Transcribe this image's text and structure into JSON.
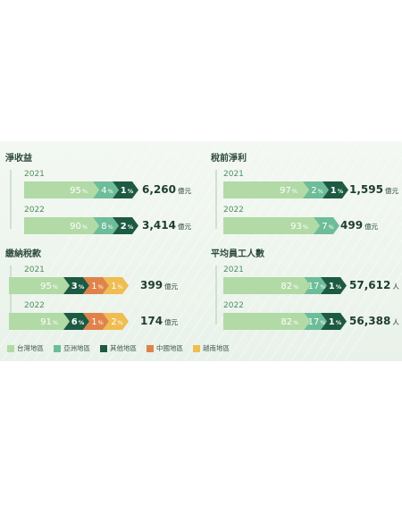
{
  "colors": {
    "taiwan": "#b2daa6",
    "asia": "#6dbd98",
    "other": "#1d5a43",
    "china": "#e0834a",
    "vietnam": "#efbd52"
  },
  "legend": [
    {
      "key": "taiwan",
      "label": "台灣地區"
    },
    {
      "key": "asia",
      "label": "亞洲地區"
    },
    {
      "key": "other",
      "label": "其他地區"
    },
    {
      "key": "china",
      "label": "中國地區"
    },
    {
      "key": "vietnam",
      "label": "越南地區"
    }
  ],
  "chart_data": [
    {
      "type": "bar",
      "title": "淨收益",
      "stacked": true,
      "categories": [
        "2021",
        "2022"
      ],
      "series": [
        {
          "name": "台灣地區",
          "key": "taiwan",
          "values": [
            95,
            90
          ],
          "labels": [
            "95",
            "90"
          ]
        },
        {
          "name": "亞洲地區",
          "key": "asia",
          "values": [
            4,
            8
          ],
          "labels": [
            "4",
            "8"
          ]
        },
        {
          "name": "其他地區",
          "key": "other",
          "values": [
            1,
            2
          ],
          "labels": [
            "1",
            "2"
          ]
        }
      ],
      "totals": [
        {
          "value": "6,260",
          "unit": "億元"
        },
        {
          "value": "3,414",
          "unit": "億元"
        }
      ]
    },
    {
      "type": "bar",
      "title": "稅前淨利",
      "stacked": true,
      "categories": [
        "2021",
        "2022"
      ],
      "series": [
        {
          "name": "台灣地區",
          "key": "taiwan",
          "values": [
            97,
            93
          ],
          "labels": [
            "97",
            "93"
          ]
        },
        {
          "name": "亞洲地區",
          "key": "asia",
          "values": [
            2,
            7
          ],
          "labels": [
            "2",
            "7"
          ]
        },
        {
          "name": "其他地區",
          "key": "other",
          "values": [
            1,
            0
          ],
          "labels": [
            "1",
            ""
          ]
        }
      ],
      "totals": [
        {
          "value": "1,595",
          "unit": "億元"
        },
        {
          "value": "499",
          "unit": "億元"
        }
      ]
    },
    {
      "type": "bar",
      "title": "繳納稅款",
      "stacked": true,
      "categories": [
        "2021",
        "2022"
      ],
      "series": [
        {
          "name": "台灣地區",
          "key": "taiwan",
          "values": [
            95,
            91
          ],
          "labels": [
            "95",
            "91"
          ]
        },
        {
          "name": "其他地區",
          "key": "other",
          "values": [
            3,
            6
          ],
          "labels": [
            "3",
            "6"
          ]
        },
        {
          "name": "中國地區",
          "key": "china",
          "values": [
            1,
            1
          ],
          "labels": [
            "1",
            "1"
          ]
        },
        {
          "name": "越南地區",
          "key": "vietnam",
          "values": [
            1,
            2
          ],
          "labels": [
            "1",
            "2"
          ]
        }
      ],
      "totals": [
        {
          "value": "399",
          "unit": "億元"
        },
        {
          "value": "174",
          "unit": "億元"
        }
      ]
    },
    {
      "type": "bar",
      "title": "平均員工人數",
      "stacked": true,
      "categories": [
        "2021",
        "2022"
      ],
      "series": [
        {
          "name": "台灣地區",
          "key": "taiwan",
          "values": [
            82,
            82
          ],
          "labels": [
            "82",
            "82"
          ]
        },
        {
          "name": "亞洲地區",
          "key": "asia",
          "values": [
            17,
            17
          ],
          "labels": [
            "17",
            "17"
          ]
        },
        {
          "name": "其他地區",
          "key": "other",
          "values": [
            1,
            1
          ],
          "labels": [
            "1",
            "1"
          ]
        }
      ],
      "totals": [
        {
          "value": "57,612",
          "unit": "人"
        },
        {
          "value": "56,388",
          "unit": "人"
        }
      ]
    }
  ]
}
